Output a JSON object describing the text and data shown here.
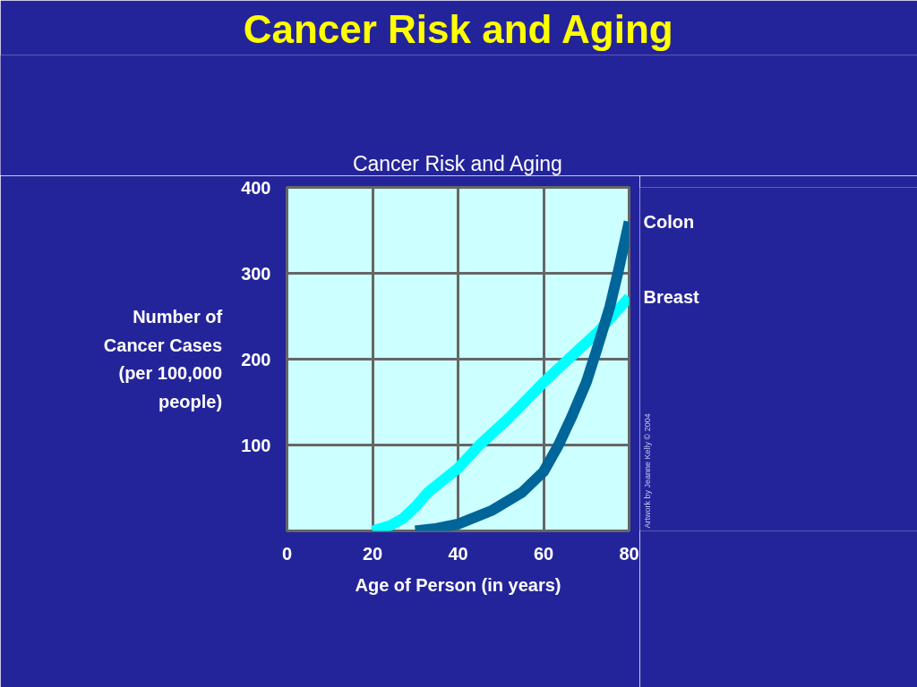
{
  "chart_data": {
    "type": "line",
    "subtitle": "Cancer Risk and Aging",
    "title": "Cancer Risk and Aging",
    "xlabel": "Age of Person (in years)",
    "ylabel": "Number of Cancer Cases (per 100,000 people)",
    "annotations": [
      "Artwork by Jeanne Kelly © 2004"
    ],
    "xlim": [
      0,
      80
    ],
    "xticks": [
      0,
      20,
      40,
      60,
      80
    ],
    "ylim": [
      0,
      400
    ],
    "yticks": [
      100,
      200,
      300,
      400
    ],
    "grid": true,
    "marker": "none",
    "line_style": "solid",
    "series": [
      {
        "name": "Breast",
        "color": "#00ffff",
        "x": [
          20,
          24,
          27,
          30,
          33,
          40,
          45,
          52,
          60,
          66,
          73,
          80
        ],
        "values": [
          0,
          6,
          14,
          28,
          45,
          73,
          100,
          132,
          173,
          201,
          233,
          272
        ]
      },
      {
        "name": "Colon",
        "color": "#006699",
        "x": [
          30,
          35,
          40,
          48,
          55,
          60,
          63.5,
          66.5,
          70,
          72.5,
          75.5,
          77.5,
          80
        ],
        "values": [
          0,
          3,
          8,
          24,
          45,
          69,
          100,
          132,
          173,
          212,
          261,
          303,
          360
        ]
      }
    ]
  }
}
